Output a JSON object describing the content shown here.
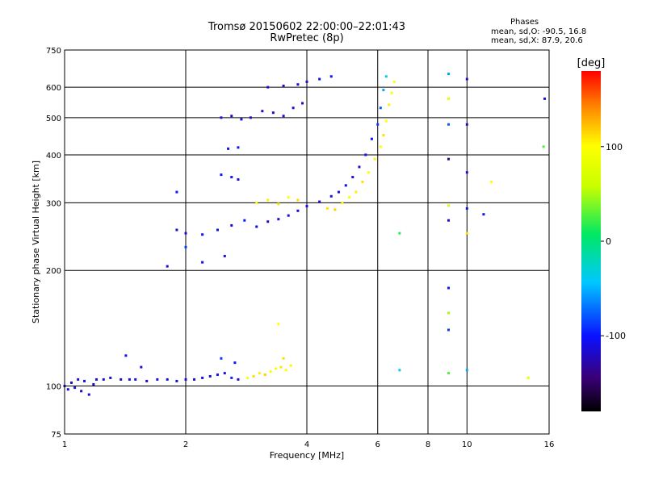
{
  "header": {
    "title": "Tromsø 20150602 22:00:00–22:01:43",
    "subtitle": "RwPretec (8p)",
    "phase_heading": "Phases",
    "phase_line_o": "mean, sd,O: -90.5, 16.8",
    "phase_line_x": "mean, sd,X:  87.9, 20.6"
  },
  "colorbar": {
    "unit_label": "[deg]",
    "tick_labels": [
      "100",
      "0",
      "-100"
    ],
    "ticks": [
      100,
      0,
      -100
    ],
    "range": [
      -180,
      180
    ]
  },
  "chart_data": {
    "type": "scatter",
    "title": "Tromsø 20150602 22:00:00–22:01:43",
    "subtitle": "RwPretec (8p)",
    "xlabel": "Frequency [MHz]",
    "ylabel": "Stationary phase Virtual Height [km]",
    "xscale": "log",
    "yscale": "log",
    "xlim": [
      1,
      16
    ],
    "ylim": [
      75,
      750
    ],
    "grid": true,
    "x_ticks": [
      1,
      2,
      4,
      6,
      8,
      10,
      16
    ],
    "x_tick_labels": [
      "1",
      "2",
      "4",
      "6",
      "8",
      "10",
      "16"
    ],
    "y_ticks": [
      75,
      100,
      200,
      300,
      400,
      500,
      600,
      750
    ],
    "y_tick_labels": [
      "75",
      "100",
      "200",
      "300",
      "400",
      "500",
      "600",
      "750"
    ],
    "color_variable": "phase [deg]",
    "series": [
      {
        "points": [
          [
            1.0,
            100,
            -115
          ],
          [
            1.02,
            98,
            -110
          ],
          [
            1.04,
            102,
            -120
          ],
          [
            1.06,
            99,
            -105
          ],
          [
            1.08,
            104,
            -112
          ],
          [
            1.1,
            97,
            -118
          ],
          [
            1.12,
            103,
            -108
          ],
          [
            1.15,
            95,
            -120
          ],
          [
            1.18,
            101,
            -115
          ],
          [
            1.2,
            104,
            -110
          ],
          [
            1.25,
            104,
            -112
          ],
          [
            1.3,
            105,
            -115
          ],
          [
            1.38,
            104,
            -118
          ],
          [
            1.45,
            104,
            -110
          ],
          [
            1.5,
            104,
            -112
          ],
          [
            1.6,
            103,
            -115
          ],
          [
            1.7,
            104,
            -108
          ],
          [
            1.8,
            104,
            -115
          ],
          [
            1.9,
            103,
            -112
          ],
          [
            2.0,
            104,
            -110
          ],
          [
            2.1,
            104,
            -118
          ],
          [
            2.2,
            105,
            -105
          ],
          [
            2.3,
            106,
            -112
          ],
          [
            2.4,
            107,
            -100
          ],
          [
            2.5,
            108,
            -110
          ],
          [
            2.6,
            105,
            -95
          ],
          [
            2.7,
            104,
            -112
          ],
          [
            1.42,
            120,
            -110
          ],
          [
            1.55,
            112,
            -115
          ],
          [
            2.45,
            118,
            -90
          ],
          [
            2.65,
            115,
            -100
          ],
          [
            2.85,
            105,
            100
          ],
          [
            2.95,
            106,
            110
          ],
          [
            3.05,
            108,
            105
          ],
          [
            3.15,
            107,
            115
          ],
          [
            3.25,
            109,
            95
          ],
          [
            3.35,
            111,
            100
          ],
          [
            3.45,
            112,
            108
          ],
          [
            3.55,
            110,
            92
          ],
          [
            3.65,
            113,
            102
          ],
          [
            3.5,
            118,
            110
          ],
          [
            3.4,
            145,
            100
          ],
          [
            3.0,
            260,
            -110
          ],
          [
            3.2,
            268,
            -115
          ],
          [
            3.4,
            272,
            -108
          ],
          [
            3.6,
            278,
            -112
          ],
          [
            3.8,
            286,
            -118
          ],
          [
            4.0,
            294,
            -110
          ],
          [
            4.3,
            302,
            -115
          ],
          [
            4.6,
            312,
            -108
          ],
          [
            4.8,
            320,
            -112
          ],
          [
            5.0,
            333,
            -118
          ],
          [
            5.2,
            350,
            -110
          ],
          [
            5.4,
            372,
            -115
          ],
          [
            5.6,
            400,
            -105
          ],
          [
            5.8,
            440,
            -100
          ],
          [
            6.0,
            480,
            -90
          ],
          [
            6.1,
            530,
            -80
          ],
          [
            6.2,
            590,
            -60
          ],
          [
            6.3,
            640,
            -40
          ],
          [
            3.0,
            300,
            95
          ],
          [
            3.2,
            305,
            105
          ],
          [
            3.4,
            298,
            110
          ],
          [
            3.6,
            310,
            100
          ],
          [
            3.8,
            305,
            112
          ],
          [
            4.5,
            290,
            108
          ],
          [
            4.7,
            288,
            115
          ],
          [
            4.9,
            300,
            102
          ],
          [
            5.1,
            310,
            98
          ],
          [
            5.3,
            320,
            105
          ],
          [
            5.5,
            340,
            110
          ],
          [
            5.7,
            360,
            100
          ],
          [
            5.9,
            390,
            105
          ],
          [
            6.1,
            420,
            95
          ],
          [
            6.2,
            450,
            110
          ],
          [
            6.3,
            490,
            100
          ],
          [
            6.4,
            540,
            105
          ],
          [
            6.5,
            580,
            95
          ],
          [
            6.6,
            620,
            100
          ],
          [
            1.9,
            255,
            -110
          ],
          [
            2.0,
            250,
            -115
          ],
          [
            2.2,
            248,
            -105
          ],
          [
            2.4,
            255,
            -112
          ],
          [
            2.6,
            262,
            -118
          ],
          [
            2.8,
            270,
            -100
          ],
          [
            2.0,
            230,
            -90
          ],
          [
            1.9,
            320,
            -100
          ],
          [
            1.8,
            205,
            -110
          ],
          [
            2.2,
            210,
            -105
          ],
          [
            2.5,
            218,
            -112
          ],
          [
            2.45,
            500,
            -120
          ],
          [
            2.6,
            505,
            -115
          ],
          [
            2.75,
            495,
            -110
          ],
          [
            2.9,
            500,
            -118
          ],
          [
            3.1,
            520,
            -120
          ],
          [
            3.3,
            515,
            -125
          ],
          [
            3.5,
            505,
            -115
          ],
          [
            3.7,
            530,
            -112
          ],
          [
            3.9,
            545,
            -118
          ],
          [
            3.2,
            600,
            -125
          ],
          [
            3.5,
            605,
            -120
          ],
          [
            3.8,
            610,
            -118
          ],
          [
            4.0,
            620,
            -115
          ],
          [
            4.3,
            630,
            -110
          ],
          [
            4.6,
            640,
            -100
          ],
          [
            2.55,
            415,
            -110
          ],
          [
            2.7,
            418,
            -105
          ],
          [
            2.45,
            355,
            -100
          ],
          [
            2.6,
            350,
            -108
          ],
          [
            2.7,
            345,
            -112
          ],
          [
            9.0,
            650,
            -60
          ],
          [
            9.0,
            560,
            70
          ],
          [
            9.0,
            480,
            -80
          ],
          [
            9.0,
            390,
            -140
          ],
          [
            9.0,
            295,
            60
          ],
          [
            9.0,
            270,
            -120
          ],
          [
            9.0,
            180,
            -100
          ],
          [
            9.0,
            155,
            40
          ],
          [
            9.0,
            140,
            -90
          ],
          [
            9.0,
            108,
            20
          ],
          [
            10.0,
            630,
            -120
          ],
          [
            10.0,
            480,
            -130
          ],
          [
            10.0,
            360,
            -120
          ],
          [
            10.0,
            290,
            -110
          ],
          [
            10.0,
            250,
            110
          ],
          [
            10.0,
            110,
            -60
          ],
          [
            11.0,
            280,
            -105
          ],
          [
            11.5,
            340,
            100
          ],
          [
            14.2,
            105,
            80
          ],
          [
            15.5,
            420,
            20
          ],
          [
            15.6,
            560,
            -110
          ],
          [
            6.8,
            110,
            -40
          ],
          [
            6.8,
            250,
            10
          ]
        ]
      }
    ]
  }
}
